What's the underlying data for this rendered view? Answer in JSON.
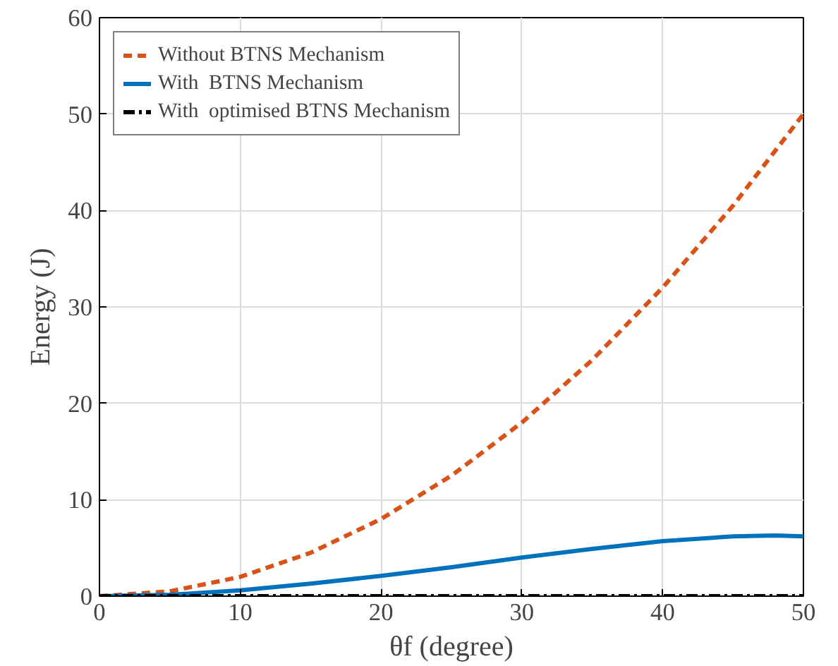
{
  "chart_data": {
    "type": "line",
    "xlabel": "θf (degree)",
    "ylabel": "Energy (J)",
    "xlim": [
      0,
      50
    ],
    "ylim": [
      0,
      60
    ],
    "xticks": [
      0,
      10,
      20,
      30,
      40,
      50
    ],
    "yticks": [
      0,
      10,
      20,
      30,
      40,
      50,
      60
    ],
    "grid": true,
    "legend": "top left",
    "series": [
      {
        "name": "Without BTNS Mechanism",
        "color": "#d95319",
        "line_style": "dashed",
        "x": [
          0,
          5,
          10,
          15,
          20,
          25,
          30,
          35,
          40,
          45,
          50
        ],
        "values": [
          0,
          0.5,
          2,
          4.5,
          8,
          12.5,
          18,
          24.5,
          32,
          40.5,
          50
        ]
      },
      {
        "name": "With  BTNS Mechanism",
        "color": "#0072bd",
        "line_style": "solid",
        "x": [
          0,
          5,
          10,
          15,
          20,
          25,
          30,
          35,
          40,
          45,
          48,
          50
        ],
        "values": [
          0,
          0.15,
          0.6,
          1.3,
          2.1,
          3.0,
          4.0,
          4.9,
          5.7,
          6.2,
          6.3,
          6.2
        ]
      },
      {
        "name": "With  optimised BTNS Mechanism",
        "color": "#000000",
        "line_style": "dashdot",
        "x": [
          0,
          10,
          20,
          30,
          40,
          50
        ],
        "values": [
          0,
          0,
          0,
          0,
          0,
          0
        ]
      }
    ]
  }
}
